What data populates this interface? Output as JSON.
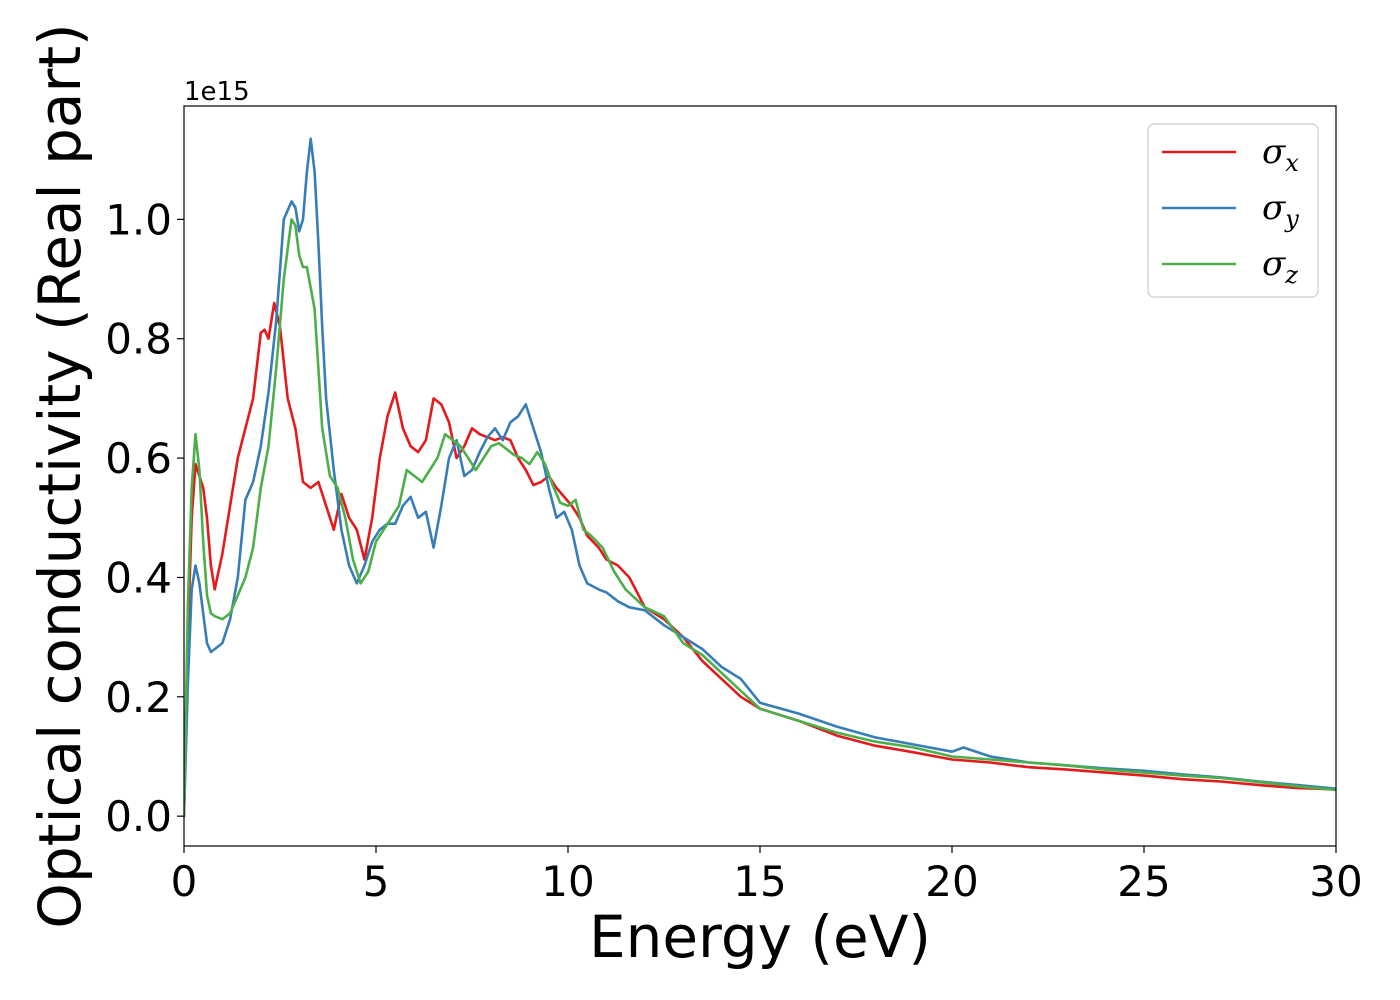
{
  "chart_data": {
    "type": "line",
    "xlabel": "Energy (eV)",
    "ylabel": "Optical conductivity (Real part)",
    "y_offset_label": "1e15",
    "xlim": [
      0,
      30
    ],
    "ylim": [
      -0.05,
      1.19
    ],
    "x_ticks": [
      0,
      5,
      10,
      15,
      20,
      25,
      30
    ],
    "x_tick_labels": [
      "0",
      "5",
      "10",
      "15",
      "20",
      "25",
      "30"
    ],
    "y_ticks": [
      0.0,
      0.2,
      0.4,
      0.6,
      0.8,
      1.0
    ],
    "y_tick_labels": [
      "0.0",
      "0.2",
      "0.4",
      "0.6",
      "0.8",
      "1.0"
    ],
    "grid": false,
    "legend_position": "top-right",
    "series": [
      {
        "name": "σx",
        "base": "σ",
        "sub": "x",
        "color": "#e41a1c",
        "points": [
          [
            0,
            0
          ],
          [
            0.1,
            0.3
          ],
          [
            0.2,
            0.5
          ],
          [
            0.3,
            0.59
          ],
          [
            0.4,
            0.57
          ],
          [
            0.5,
            0.55
          ],
          [
            0.6,
            0.5
          ],
          [
            0.7,
            0.42
          ],
          [
            0.8,
            0.38
          ],
          [
            1.0,
            0.44
          ],
          [
            1.2,
            0.52
          ],
          [
            1.4,
            0.6
          ],
          [
            1.6,
            0.65
          ],
          [
            1.8,
            0.7
          ],
          [
            2.0,
            0.81
          ],
          [
            2.1,
            0.815
          ],
          [
            2.2,
            0.8
          ],
          [
            2.35,
            0.86
          ],
          [
            2.5,
            0.82
          ],
          [
            2.7,
            0.7
          ],
          [
            2.9,
            0.65
          ],
          [
            3.1,
            0.56
          ],
          [
            3.3,
            0.55
          ],
          [
            3.5,
            0.56
          ],
          [
            3.7,
            0.52
          ],
          [
            3.9,
            0.48
          ],
          [
            4.1,
            0.54
          ],
          [
            4.3,
            0.5
          ],
          [
            4.5,
            0.48
          ],
          [
            4.7,
            0.43
          ],
          [
            4.9,
            0.5
          ],
          [
            5.1,
            0.6
          ],
          [
            5.3,
            0.67
          ],
          [
            5.5,
            0.71
          ],
          [
            5.7,
            0.65
          ],
          [
            5.9,
            0.62
          ],
          [
            6.1,
            0.61
          ],
          [
            6.3,
            0.63
          ],
          [
            6.5,
            0.7
          ],
          [
            6.7,
            0.69
          ],
          [
            6.9,
            0.66
          ],
          [
            7.1,
            0.6
          ],
          [
            7.3,
            0.62
          ],
          [
            7.5,
            0.65
          ],
          [
            7.7,
            0.64
          ],
          [
            7.9,
            0.635
          ],
          [
            8.1,
            0.63
          ],
          [
            8.3,
            0.635
          ],
          [
            8.5,
            0.63
          ],
          [
            8.7,
            0.6
          ],
          [
            8.9,
            0.58
          ],
          [
            9.1,
            0.555
          ],
          [
            9.3,
            0.56
          ],
          [
            9.5,
            0.57
          ],
          [
            9.7,
            0.55
          ],
          [
            9.9,
            0.535
          ],
          [
            10.1,
            0.52
          ],
          [
            10.3,
            0.5
          ],
          [
            10.5,
            0.47
          ],
          [
            10.8,
            0.45
          ],
          [
            11.0,
            0.43
          ],
          [
            11.3,
            0.42
          ],
          [
            11.6,
            0.4
          ],
          [
            12.0,
            0.35
          ],
          [
            12.5,
            0.33
          ],
          [
            13.0,
            0.3
          ],
          [
            13.5,
            0.26
          ],
          [
            14.0,
            0.23
          ],
          [
            14.5,
            0.2
          ],
          [
            15.0,
            0.18
          ],
          [
            16.0,
            0.16
          ],
          [
            17.0,
            0.135
          ],
          [
            18.0,
            0.118
          ],
          [
            19.0,
            0.107
          ],
          [
            20.0,
            0.095
          ],
          [
            21.0,
            0.09
          ],
          [
            22.0,
            0.082
          ],
          [
            23.0,
            0.078
          ],
          [
            24.0,
            0.073
          ],
          [
            25.0,
            0.068
          ],
          [
            26.0,
            0.062
          ],
          [
            27.0,
            0.058
          ],
          [
            28.0,
            0.052
          ],
          [
            29.0,
            0.047
          ],
          [
            30.0,
            0.045
          ]
        ]
      },
      {
        "name": "σy",
        "base": "σ",
        "sub": "y",
        "color": "#377eb8",
        "points": [
          [
            0,
            0
          ],
          [
            0.1,
            0.22
          ],
          [
            0.2,
            0.38
          ],
          [
            0.3,
            0.42
          ],
          [
            0.4,
            0.39
          ],
          [
            0.5,
            0.34
          ],
          [
            0.6,
            0.29
          ],
          [
            0.7,
            0.275
          ],
          [
            0.8,
            0.28
          ],
          [
            1.0,
            0.29
          ],
          [
            1.2,
            0.33
          ],
          [
            1.4,
            0.4
          ],
          [
            1.6,
            0.53
          ],
          [
            1.8,
            0.56
          ],
          [
            2.0,
            0.62
          ],
          [
            2.2,
            0.71
          ],
          [
            2.4,
            0.83
          ],
          [
            2.6,
            1.0
          ],
          [
            2.8,
            1.03
          ],
          [
            2.9,
            1.02
          ],
          [
            3.0,
            0.98
          ],
          [
            3.1,
            1.0
          ],
          [
            3.2,
            1.08
          ],
          [
            3.3,
            1.135
          ],
          [
            3.4,
            1.08
          ],
          [
            3.5,
            0.96
          ],
          [
            3.6,
            0.82
          ],
          [
            3.7,
            0.7
          ],
          [
            3.9,
            0.58
          ],
          [
            4.1,
            0.48
          ],
          [
            4.3,
            0.42
          ],
          [
            4.5,
            0.39
          ],
          [
            4.7,
            0.42
          ],
          [
            4.9,
            0.46
          ],
          [
            5.1,
            0.48
          ],
          [
            5.3,
            0.49
          ],
          [
            5.5,
            0.49
          ],
          [
            5.7,
            0.52
          ],
          [
            5.9,
            0.535
          ],
          [
            6.1,
            0.5
          ],
          [
            6.3,
            0.51
          ],
          [
            6.5,
            0.45
          ],
          [
            6.7,
            0.52
          ],
          [
            6.9,
            0.6
          ],
          [
            7.1,
            0.63
          ],
          [
            7.3,
            0.57
          ],
          [
            7.5,
            0.58
          ],
          [
            7.7,
            0.61
          ],
          [
            7.9,
            0.635
          ],
          [
            8.1,
            0.65
          ],
          [
            8.3,
            0.63
          ],
          [
            8.5,
            0.66
          ],
          [
            8.7,
            0.67
          ],
          [
            8.9,
            0.69
          ],
          [
            9.1,
            0.65
          ],
          [
            9.3,
            0.61
          ],
          [
            9.5,
            0.55
          ],
          [
            9.7,
            0.5
          ],
          [
            9.9,
            0.51
          ],
          [
            10.1,
            0.48
          ],
          [
            10.3,
            0.42
          ],
          [
            10.5,
            0.39
          ],
          [
            10.8,
            0.38
          ],
          [
            11.0,
            0.375
          ],
          [
            11.3,
            0.36
          ],
          [
            11.6,
            0.35
          ],
          [
            12.0,
            0.345
          ],
          [
            12.5,
            0.32
          ],
          [
            13.0,
            0.3
          ],
          [
            13.5,
            0.28
          ],
          [
            14.0,
            0.25
          ],
          [
            14.5,
            0.23
          ],
          [
            15.0,
            0.19
          ],
          [
            16.0,
            0.172
          ],
          [
            17.0,
            0.15
          ],
          [
            18.0,
            0.132
          ],
          [
            19.0,
            0.12
          ],
          [
            20.0,
            0.108
          ],
          [
            20.3,
            0.115
          ],
          [
            21.0,
            0.1
          ],
          [
            22.0,
            0.09
          ],
          [
            23.0,
            0.085
          ],
          [
            24.0,
            0.08
          ],
          [
            25.0,
            0.076
          ],
          [
            26.0,
            0.07
          ],
          [
            27.0,
            0.065
          ],
          [
            28.0,
            0.058
          ],
          [
            29.0,
            0.052
          ],
          [
            30.0,
            0.046
          ]
        ]
      },
      {
        "name": "σz",
        "base": "σ",
        "sub": "z",
        "color": "#4daf4a",
        "points": [
          [
            0,
            0
          ],
          [
            0.1,
            0.35
          ],
          [
            0.2,
            0.55
          ],
          [
            0.3,
            0.64
          ],
          [
            0.4,
            0.58
          ],
          [
            0.5,
            0.46
          ],
          [
            0.6,
            0.37
          ],
          [
            0.7,
            0.34
          ],
          [
            0.8,
            0.335
          ],
          [
            1.0,
            0.33
          ],
          [
            1.2,
            0.34
          ],
          [
            1.4,
            0.37
          ],
          [
            1.6,
            0.4
          ],
          [
            1.8,
            0.45
          ],
          [
            2.0,
            0.55
          ],
          [
            2.2,
            0.62
          ],
          [
            2.4,
            0.75
          ],
          [
            2.6,
            0.9
          ],
          [
            2.8,
            1.0
          ],
          [
            2.9,
            0.99
          ],
          [
            3.0,
            0.94
          ],
          [
            3.1,
            0.92
          ],
          [
            3.2,
            0.92
          ],
          [
            3.4,
            0.85
          ],
          [
            3.6,
            0.65
          ],
          [
            3.8,
            0.57
          ],
          [
            4.0,
            0.55
          ],
          [
            4.2,
            0.5
          ],
          [
            4.4,
            0.43
          ],
          [
            4.6,
            0.39
          ],
          [
            4.8,
            0.41
          ],
          [
            5.0,
            0.46
          ],
          [
            5.2,
            0.48
          ],
          [
            5.4,
            0.5
          ],
          [
            5.6,
            0.52
          ],
          [
            5.8,
            0.58
          ],
          [
            6.0,
            0.57
          ],
          [
            6.2,
            0.56
          ],
          [
            6.4,
            0.58
          ],
          [
            6.6,
            0.6
          ],
          [
            6.8,
            0.64
          ],
          [
            7.0,
            0.63
          ],
          [
            7.2,
            0.62
          ],
          [
            7.4,
            0.6
          ],
          [
            7.6,
            0.58
          ],
          [
            7.8,
            0.6
          ],
          [
            8.0,
            0.62
          ],
          [
            8.2,
            0.625
          ],
          [
            8.4,
            0.615
          ],
          [
            8.6,
            0.605
          ],
          [
            8.8,
            0.6
          ],
          [
            9.0,
            0.59
          ],
          [
            9.2,
            0.61
          ],
          [
            9.4,
            0.59
          ],
          [
            9.6,
            0.555
          ],
          [
            9.8,
            0.525
          ],
          [
            10.0,
            0.52
          ],
          [
            10.2,
            0.53
          ],
          [
            10.4,
            0.48
          ],
          [
            10.6,
            0.47
          ],
          [
            10.9,
            0.45
          ],
          [
            11.2,
            0.41
          ],
          [
            11.5,
            0.38
          ],
          [
            12.0,
            0.35
          ],
          [
            12.5,
            0.335
          ],
          [
            13.0,
            0.29
          ],
          [
            13.5,
            0.27
          ],
          [
            14.0,
            0.24
          ],
          [
            14.5,
            0.21
          ],
          [
            15.0,
            0.18
          ],
          [
            16.0,
            0.16
          ],
          [
            17.0,
            0.14
          ],
          [
            18.0,
            0.125
          ],
          [
            19.0,
            0.115
          ],
          [
            20.0,
            0.1
          ],
          [
            21.0,
            0.095
          ],
          [
            22.0,
            0.09
          ],
          [
            23.0,
            0.085
          ],
          [
            24.0,
            0.078
          ],
          [
            25.0,
            0.073
          ],
          [
            26.0,
            0.068
          ],
          [
            27.0,
            0.064
          ],
          [
            28.0,
            0.057
          ],
          [
            29.0,
            0.05
          ],
          [
            30.0,
            0.044
          ]
        ]
      }
    ]
  }
}
